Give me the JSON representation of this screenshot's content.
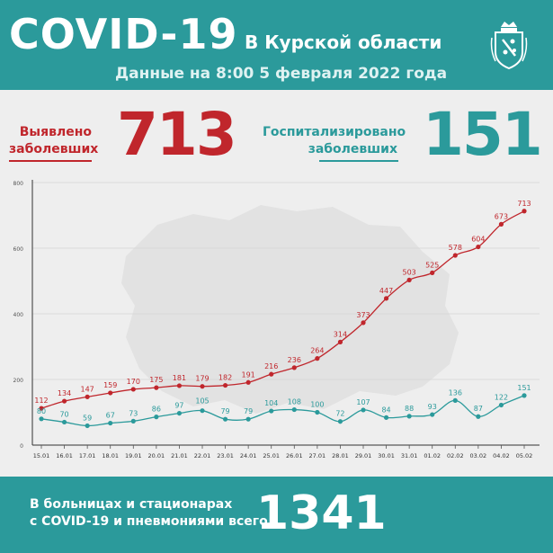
{
  "header": {
    "title": "COVID-19",
    "region": "В Курской области",
    "date": "Данные на 8:00 5 февраля 2022 года"
  },
  "stats": {
    "detected_label_line1": "Выявлено",
    "detected_label_line2": "заболевших",
    "detected_value": "713",
    "hospitalized_label_line1": "Госпитализировано",
    "hospitalized_label_line2": "заболевших",
    "hospitalized_value": "151"
  },
  "footer": {
    "text_line1": "В больницах и стационарах",
    "text_line2": "с COVID-19 и пневмониями всего",
    "value": "1341"
  },
  "colors": {
    "teal": "#2b9a9b",
    "red": "#c0262c",
    "background": "#eeeeee"
  },
  "chart_data": {
    "type": "line",
    "categories": [
      "15.01",
      "16.01",
      "17.01",
      "18.01",
      "19.01",
      "20.01",
      "21.01",
      "22.01",
      "23.01",
      "24.01",
      "25.01",
      "26.01",
      "27.01",
      "28.01",
      "29.01",
      "30.01",
      "31.01",
      "01.02",
      "02.02",
      "03.02",
      "04.02",
      "05.02"
    ],
    "series": [
      {
        "values": [
          112,
          134,
          147,
          159,
          170,
          175,
          181,
          179,
          182,
          191,
          216,
          236,
          264,
          314,
          373,
          447,
          503,
          525,
          578,
          604,
          673,
          713
        ],
        "color": "#c0262c"
      },
      {
        "values": [
          80,
          70,
          59,
          67,
          73,
          86,
          97,
          105,
          79,
          79,
          104,
          108,
          100,
          72,
          107,
          84,
          88,
          93,
          136,
          87,
          122,
          151
        ],
        "color": "#2b9a9b"
      }
    ],
    "yticks": [
      0,
      200,
      400,
      600,
      800
    ],
    "ylim": [
      0,
      800
    ],
    "grid": true
  }
}
